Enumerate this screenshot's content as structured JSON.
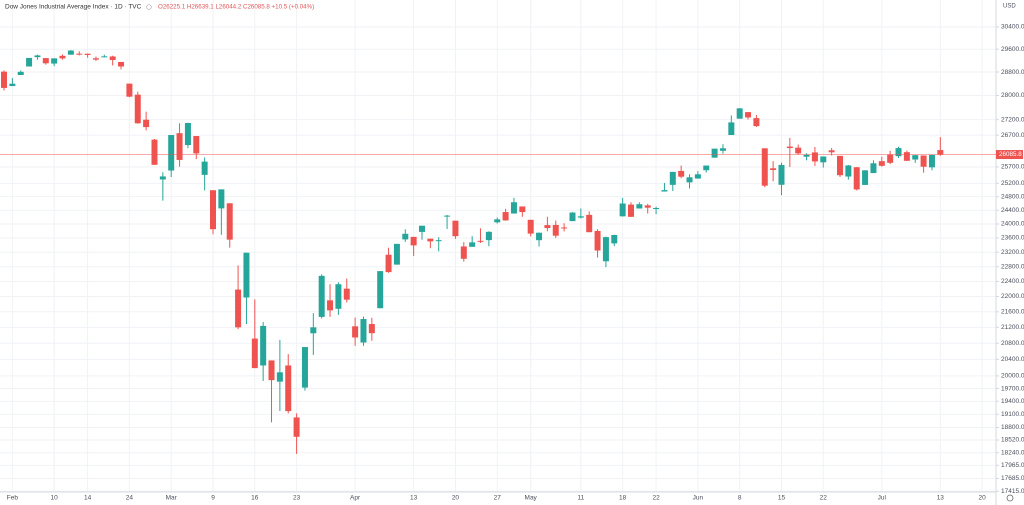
{
  "chart_data": {
    "type": "candlestick",
    "title": "Dow Jones Industrial Average Index · 1D · TVC",
    "ohlc_legend": "O26225.1 H26639.1 L26044.2 C26085.8 +10.5 (+0.04%)",
    "currency": "USD",
    "log": true,
    "grid": true,
    "up_color": "#26a69a",
    "down_color": "#ef5350",
    "ylim": [
      17400,
      31400
    ],
    "yticks": [
      {
        "value": 30400,
        "label": "30400.0"
      },
      {
        "value": 29600,
        "label": "29600.0"
      },
      {
        "value": 28800,
        "label": "28800.0"
      },
      {
        "value": 28000,
        "label": "28000.0"
      },
      {
        "value": 27200,
        "label": "27200.0"
      },
      {
        "value": 26700,
        "label": "26700.0"
      },
      {
        "value": 25700,
        "label": "25700.0"
      },
      {
        "value": 25200,
        "label": "25200.0"
      },
      {
        "value": 24800,
        "label": "24800.0"
      },
      {
        "value": 24400,
        "label": "24400.0"
      },
      {
        "value": 24000,
        "label": "24000.0"
      },
      {
        "value": 23600,
        "label": "23600.0"
      },
      {
        "value": 23200,
        "label": "23200.0"
      },
      {
        "value": 22800,
        "label": "22800.0"
      },
      {
        "value": 22400,
        "label": "22400.0"
      },
      {
        "value": 22000,
        "label": "22000.0"
      },
      {
        "value": 21600,
        "label": "21600.0"
      },
      {
        "value": 21200,
        "label": "21200.0"
      },
      {
        "value": 20800,
        "label": "20800.0"
      },
      {
        "value": 20400,
        "label": "20400.0"
      },
      {
        "value": 20000,
        "label": "20000.0"
      },
      {
        "value": 19700,
        "label": "19700.0"
      },
      {
        "value": 19400,
        "label": "19400.0"
      },
      {
        "value": 19100,
        "label": "19100.0"
      },
      {
        "value": 18800,
        "label": "18800.0"
      },
      {
        "value": 18520,
        "label": "18520.0"
      },
      {
        "value": 18240,
        "label": "18240.0"
      },
      {
        "value": 17965,
        "label": "17965.0"
      },
      {
        "value": 17685,
        "label": "17685.0"
      },
      {
        "value": 17415,
        "label": "17415.0"
      }
    ],
    "categories": [
      null,
      "Feb",
      null,
      null,
      null,
      null,
      "10",
      null,
      null,
      null,
      "14",
      null,
      null,
      null,
      null,
      "24",
      null,
      null,
      null,
      null,
      "Mar",
      null,
      null,
      null,
      null,
      "9",
      null,
      null,
      null,
      null,
      "16",
      null,
      null,
      null,
      null,
      "23",
      null,
      null,
      null,
      null,
      null,
      null,
      "Apr",
      null,
      null,
      null,
      null,
      null,
      null,
      "13",
      null,
      null,
      null,
      null,
      "20",
      null,
      null,
      null,
      null,
      "27",
      null,
      null,
      null,
      "May",
      null,
      null,
      null,
      null,
      null,
      "11",
      null,
      null,
      null,
      null,
      "18",
      null,
      null,
      null,
      "22",
      null,
      null,
      null,
      null,
      "Jun",
      null,
      null,
      null,
      null,
      "8",
      null,
      null,
      null,
      null,
      "15",
      null,
      null,
      null,
      null,
      "22",
      null,
      null,
      null,
      null,
      null,
      null,
      "Jul",
      null,
      null,
      null,
      null,
      null,
      null,
      "13",
      null,
      null,
      null,
      null,
      "20"
    ],
    "open": [
      28813,
      28320,
      28697,
      28992,
      29320,
      29286,
      29094,
      29366,
      29406,
      29442,
      29441,
      29279,
      29312,
      29342,
      29150,
      28402,
      28029,
      27198,
      26556,
      25317,
      25590,
      26763,
      26383,
      26671,
      25457,
      24992,
      24453,
      24604,
      22184,
      21974,
      20917,
      20253,
      20376,
      19864,
      20253,
      19029,
      19722,
      21050,
      21468,
      21899,
      21678,
      22208,
      21227,
      20819,
      21285,
      21693,
      23131,
      22858,
      23560,
      23632,
      23773,
      23580,
      23531,
      24241,
      24095,
      23361,
      23352,
      23520,
      23540,
      24048,
      24346,
      24303,
      24510,
      24121,
      23538,
      23968,
      23973,
      23900,
      24083,
      24186,
      24264,
      23800,
      22950,
      23448,
      24221,
      24565,
      24450,
      24542,
      24445,
      24953,
      25154,
      25578,
      25229,
      25344,
      25600,
      25988,
      26203,
      26704,
      27232,
      27448,
      27251,
      26282,
      25659,
      25156,
      26336,
      26301,
      26016,
      26152,
      25843,
      26219,
      26044,
      25406,
      25692,
      25152,
      25512,
      25879,
      26086,
      26033,
      26160,
      25930,
      26056,
      25688,
      26225.1,
      null,
      null,
      null,
      null,
      null
    ],
    "high": [
      28859,
      28592,
      28856,
      29291,
      29408,
      29286,
      29277,
      29415,
      29569,
      29525,
      29441,
      29340,
      29407,
      29370,
      29150,
      28402,
      28129,
      27462,
      26577,
      25539,
      26706,
      27084,
      27102,
      26671,
      25994,
      24992,
      25018,
      24604,
      22837,
      23189,
      21925,
      21337,
      20376,
      20884,
      20531,
      19121,
      20705,
      21565,
      22595,
      22327,
      22378,
      22480,
      21451,
      21477,
      21447,
      22680,
      23328,
      23434,
      23848,
      23632,
      23950,
      23580,
      23623,
      24264,
      24095,
      23483,
      23651,
      23875,
      23790,
      24187,
      24441,
      24765,
      24510,
      24121,
      23752,
      24210,
      24100,
      24022,
      24345,
      24451,
      24364,
      23850,
      23640,
      23694,
      24764,
      24633,
      24632,
      24587,
      24504,
      25212,
      25549,
      25742,
      25475,
      25574,
      25745,
      26270,
      26411,
      27338,
      27580,
      27448,
      27355,
      26282,
      25880,
      25833,
      26611,
      26400,
      26126,
      26323,
      26026,
      26290,
      26044,
      25760,
      25692,
      25600,
      25905,
      26018,
      26204,
      26331,
      26210,
      26067,
      26056,
      26080,
      26639.1,
      null,
      null,
      null,
      null,
      null
    ],
    "low": [
      28169,
      28320,
      28697,
      28992,
      29229,
      29056,
      29004,
      29230,
      29406,
      29380,
      29300,
      29184,
      29312,
      29028,
      28893,
      27941,
      27070,
      26854,
      25766,
      24681,
      25391,
      25706,
      26286,
      25943,
      24988,
      23706,
      23690,
      23328,
      21154,
      21285,
      20188,
      19880,
      18917,
      19177,
      19122,
      18214,
      19650,
      20510,
      21427,
      21469,
      21522,
      21843,
      20736,
      20735,
      20863,
      21693,
      22634,
      22858,
      23490,
      23097,
      23552,
      23313,
      23223,
      23856,
      23575,
      22941,
      23352,
      23459,
      23368,
      24014,
      24095,
      24302,
      24206,
      23645,
      23361,
      23792,
      23598,
      23787,
      24083,
      24159,
      23764,
      23053,
      22790,
      23372,
      24215,
      24201,
      24450,
      24301,
      24284,
      24953,
      24969,
      25352,
      25044,
      25342,
      25529,
      25986,
      26111,
      26704,
      27232,
      27208,
      26964,
      25082,
      25264,
      24843,
      25699,
      26088,
      25905,
      25731,
      25681,
      26057,
      25391,
      25313,
      24986,
      25152,
      25512,
      25711,
      25787,
      25980,
      25890,
      25826,
      25523,
      25596,
      26044.2,
      null,
      null,
      null,
      null,
      null
    ],
    "close": [
      28256,
      28400,
      28808,
      29291,
      29380,
      29103,
      29277,
      29276,
      29551,
      29423,
      29398,
      29232,
      29348,
      29220,
      28992,
      27961,
      27081,
      26958,
      25767,
      25409,
      26703,
      25917,
      27091,
      26121,
      25865,
      23851,
      25018,
      23553,
      21201,
      23186,
      20189,
      21237,
      19899,
      20087,
      19174,
      18592,
      20705,
      21201,
      22552,
      21637,
      22327,
      21917,
      20944,
      21413,
      21053,
      22680,
      22654,
      23434,
      23719,
      23391,
      23950,
      23504,
      23538,
      24242,
      23650,
      23019,
      23476,
      23515,
      23775,
      24134,
      24102,
      24634,
      24346,
      23724,
      23750,
      23883,
      23665,
      23876,
      24331,
      24222,
      23765,
      23248,
      23625,
      23685,
      24597,
      24207,
      24576,
      24474,
      24465,
      24995,
      25548,
      25401,
      25383,
      25475,
      25743,
      26270,
      26282,
      27111,
      27572,
      27272,
      26990,
      25128,
      25606,
      25763,
      26290,
      26120,
      26080,
      25871,
      26025,
      26156,
      25446,
      25746,
      25016,
      25596,
      25813,
      25735,
      25827,
      26287,
      25890,
      26067,
      25706,
      26075,
      26085.8,
      null,
      null,
      null,
      null,
      null
    ]
  }
}
